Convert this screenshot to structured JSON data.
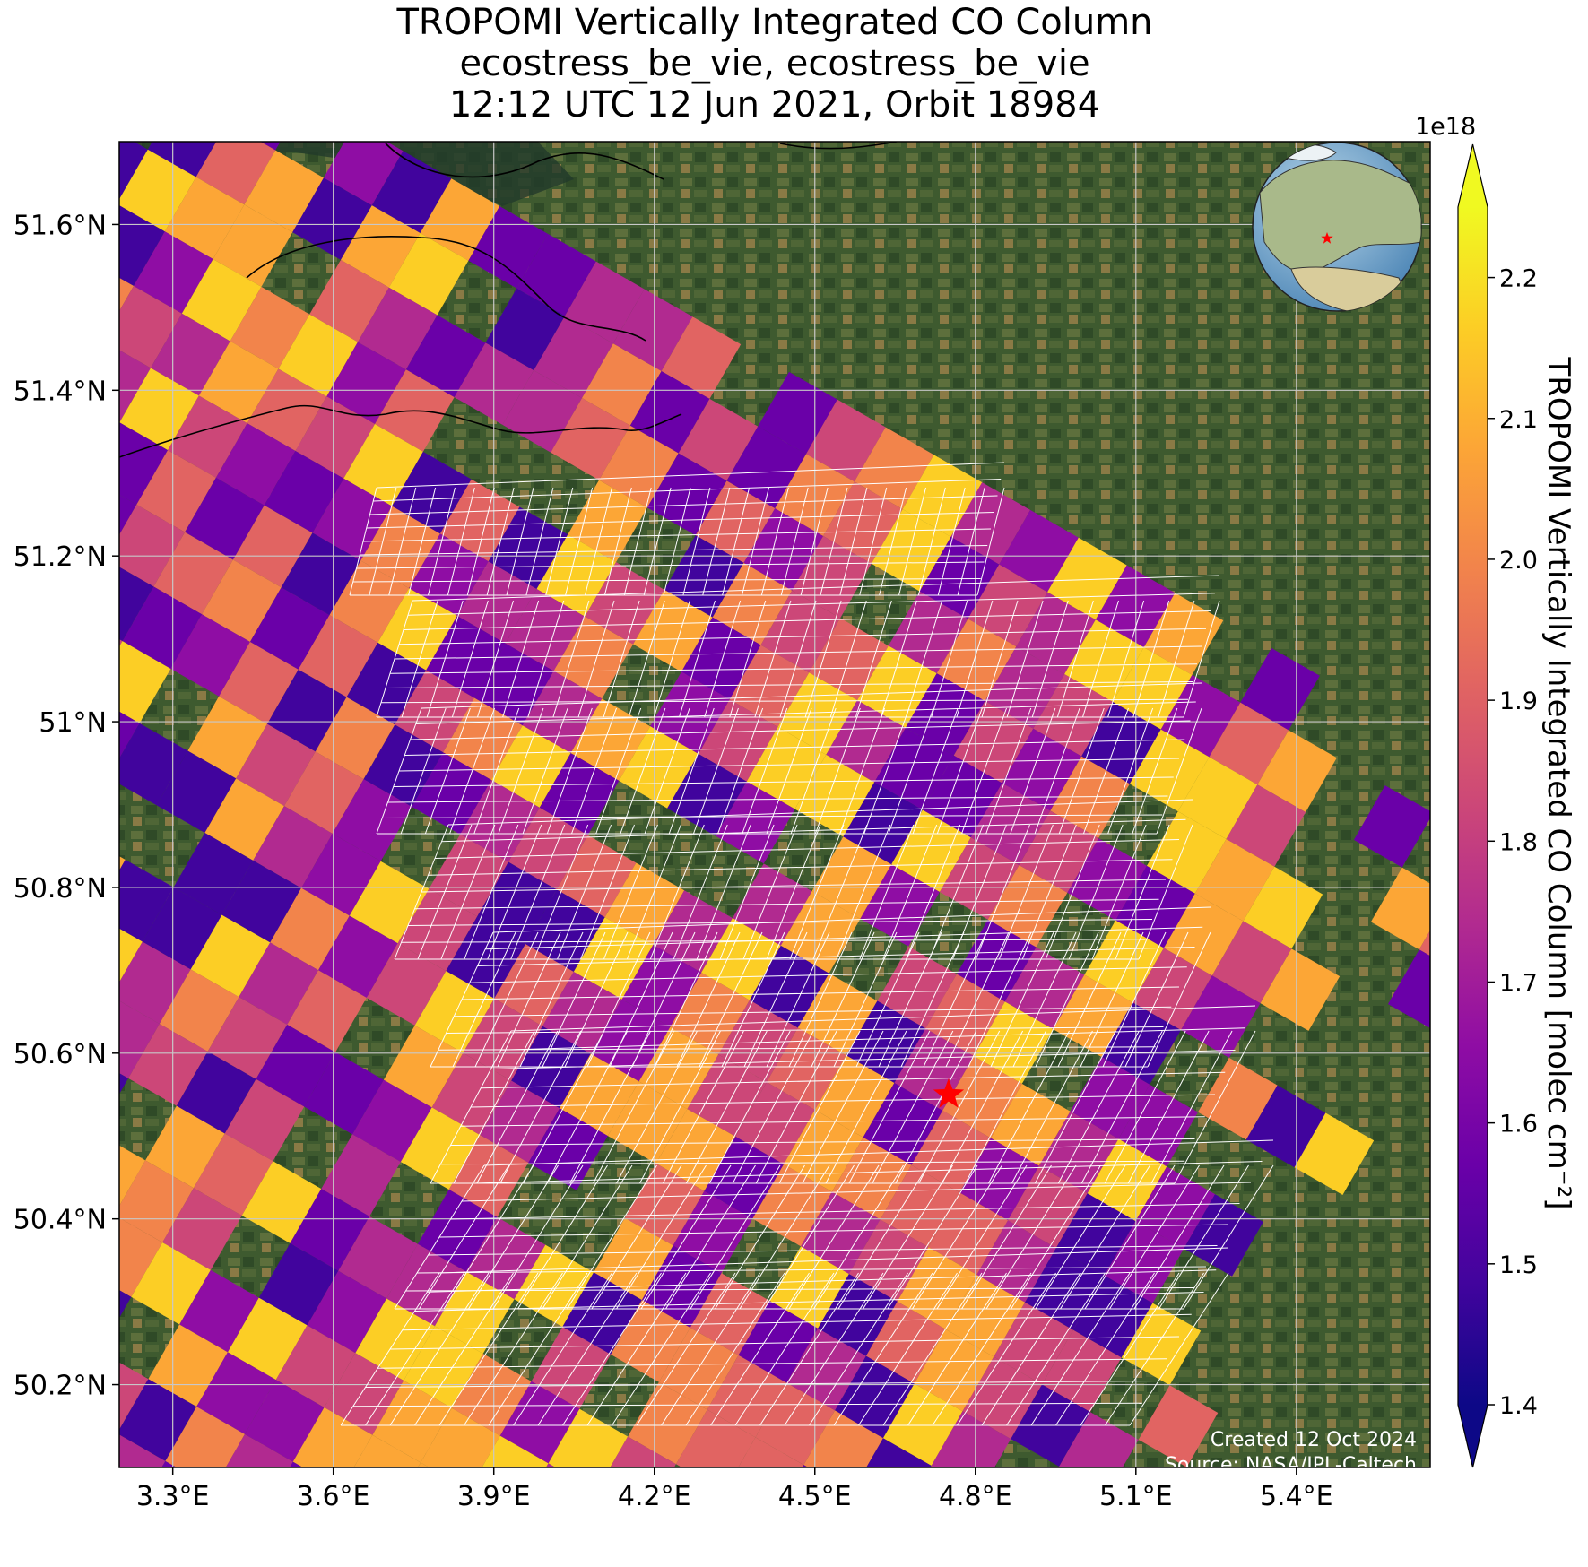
{
  "title": {
    "line1": "TROPOMI Vertically Integrated CO Column",
    "line2": "ecostress_be_vie, ecostress_be_vie",
    "line3": "12:12 UTC 12 Jun 2021, Orbit 18984"
  },
  "map": {
    "extent": {
      "lon": [
        3.2,
        5.65
      ],
      "lat": [
        50.1,
        51.7
      ]
    },
    "x_ticks": [
      {
        "value": 3.3,
        "label": "3.3°E"
      },
      {
        "value": 3.6,
        "label": "3.6°E"
      },
      {
        "value": 3.9,
        "label": "3.9°E"
      },
      {
        "value": 4.2,
        "label": "4.2°E"
      },
      {
        "value": 4.5,
        "label": "4.5°E"
      },
      {
        "value": 4.8,
        "label": "4.8°E"
      },
      {
        "value": 5.1,
        "label": "5.1°E"
      },
      {
        "value": 5.4,
        "label": "5.4°E"
      }
    ],
    "y_ticks": [
      {
        "value": 51.6,
        "label": "51.6°N"
      },
      {
        "value": 51.4,
        "label": "51.4°N"
      },
      {
        "value": 51.2,
        "label": "51.2°N"
      },
      {
        "value": 51.0,
        "label": "51°N"
      },
      {
        "value": 50.8,
        "label": "50.8°N"
      },
      {
        "value": 50.6,
        "label": "50.6°N"
      },
      {
        "value": 50.4,
        "label": "50.4°N"
      },
      {
        "value": 50.2,
        "label": "50.2°N"
      }
    ],
    "gridlines": true,
    "basemap": "satellite imagery",
    "target_marker": {
      "lon": 4.75,
      "lat": 50.55,
      "symbol": "star",
      "color": "#ff0000"
    },
    "inset_globe": {
      "position": "top-right",
      "marker": "star"
    },
    "credit_line1": "Created 12 Oct 2024",
    "credit_line2": "Source: NASA/JPL-Caltech"
  },
  "colorbar": {
    "label": "TROPOMI Vertically Integrated CO Column [molec cm⁻²]",
    "multiplier": "1e18",
    "range": [
      1.4,
      2.25
    ],
    "colormap": "plasma",
    "extend": "both",
    "ticks": [
      {
        "value": 1.4,
        "label": "1.4"
      },
      {
        "value": 1.5,
        "label": "1.5"
      },
      {
        "value": 1.6,
        "label": "1.6"
      },
      {
        "value": 1.7,
        "label": "1.7"
      },
      {
        "value": 1.8,
        "label": "1.8"
      },
      {
        "value": 1.9,
        "label": "1.9"
      },
      {
        "value": 2.0,
        "label": "2.0"
      },
      {
        "value": 2.1,
        "label": "2.1"
      },
      {
        "value": 2.2,
        "label": "2.2"
      }
    ]
  },
  "colors": {
    "grid": "#c8c8c8",
    "star": "#ff0000",
    "ecostress_outline": "#ffffff",
    "plasma": [
      "#0d0887",
      "#41049d",
      "#6a00a8",
      "#8f0da4",
      "#b12a90",
      "#cc4778",
      "#e16462",
      "#f2844b",
      "#fca636",
      "#fcce25",
      "#f0f921"
    ]
  }
}
